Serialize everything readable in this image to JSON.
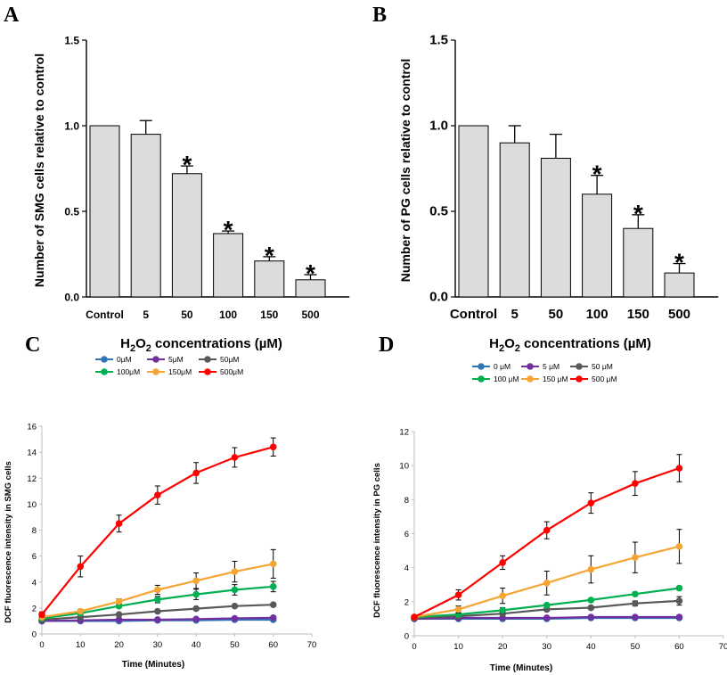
{
  "chart_data": [
    {
      "panel": "A",
      "type": "bar",
      "categories": [
        "Control",
        "5",
        "50",
        "100",
        "150",
        "500"
      ],
      "values": [
        1.0,
        0.95,
        0.72,
        0.37,
        0.21,
        0.1
      ],
      "errors": [
        0,
        0.08,
        0.045,
        0.015,
        0.025,
        0.03
      ],
      "significant": [
        false,
        false,
        true,
        true,
        true,
        true
      ],
      "star": "*",
      "ylabel": "Number of SMG cells relative to control",
      "xlabel_prefix": "H",
      "xlabel_sub1": "2",
      "xlabel_mid": "O",
      "xlabel_sub2": "2",
      "xlabel_suffix": " concentrations (µM)",
      "ylim": [
        0,
        1.5
      ],
      "yticks": [
        "0.0",
        "0.5",
        "1.0",
        "1.5"
      ]
    },
    {
      "panel": "B",
      "type": "bar",
      "categories": [
        "Control",
        "5",
        "50",
        "100",
        "150",
        "500"
      ],
      "values": [
        1.0,
        0.9,
        0.81,
        0.6,
        0.4,
        0.14
      ],
      "errors": [
        0,
        0.1,
        0.14,
        0.11,
        0.08,
        0.055
      ],
      "significant": [
        false,
        false,
        false,
        true,
        true,
        true
      ],
      "star": "*",
      "ylabel": "Number of PG cells relative to control",
      "xlabel_prefix": "H",
      "xlabel_sub1": "2",
      "xlabel_mid": "O",
      "xlabel_sub2": "2",
      "xlabel_suffix": " concentrations (µM)",
      "ylim": [
        0,
        1.5
      ],
      "yticks": [
        "0.0",
        "0.5",
        "1.0",
        "1.5"
      ]
    },
    {
      "panel": "C",
      "type": "line",
      "x": [
        0,
        10,
        20,
        30,
        40,
        50,
        60
      ],
      "series": [
        {
          "name": "0μM",
          "color": "#2e75b6",
          "values": [
            1.0,
            1.0,
            1.0,
            1.05,
            1.05,
            1.1,
            1.1
          ],
          "errors": [
            0.05,
            0.05,
            0.05,
            0.05,
            0.05,
            0.05,
            0.05
          ]
        },
        {
          "name": "5μM",
          "color": "#7030a0",
          "values": [
            1.0,
            1.05,
            1.1,
            1.1,
            1.15,
            1.2,
            1.25
          ],
          "errors": [
            0.05,
            0.05,
            0.05,
            0.05,
            0.05,
            0.05,
            0.1
          ]
        },
        {
          "name": "50μM",
          "color": "#595959",
          "values": [
            1.1,
            1.3,
            1.5,
            1.75,
            1.95,
            2.15,
            2.25
          ],
          "errors": [
            0.05,
            0.05,
            0.05,
            0.05,
            0.05,
            0.05,
            0.05
          ]
        },
        {
          "name": "100μM",
          "color": "#00b050",
          "values": [
            1.2,
            1.6,
            2.15,
            2.65,
            3.05,
            3.4,
            3.65
          ],
          "errors": [
            0.05,
            0.1,
            0.15,
            0.25,
            0.4,
            0.4,
            0.4
          ]
        },
        {
          "name": "150μM",
          "color": "#f4a534",
          "values": [
            1.3,
            1.75,
            2.5,
            3.4,
            4.1,
            4.8,
            5.4
          ],
          "errors": [
            0.1,
            0.15,
            0.2,
            0.35,
            0.6,
            0.8,
            1.1
          ]
        },
        {
          "name": "500μM",
          "color": "#ff0000",
          "values": [
            1.5,
            5.2,
            8.5,
            10.7,
            12.4,
            13.6,
            14.4
          ],
          "errors": [
            0.2,
            0.8,
            0.65,
            0.7,
            0.8,
            0.75,
            0.7
          ]
        }
      ],
      "xlabel": "Time (Minutes)",
      "ylabel": "DCF fluorescence intensity in SMG cells",
      "xlim": [
        0,
        70
      ],
      "ylim": [
        0,
        16
      ],
      "xticks": [
        "0",
        "10",
        "20",
        "30",
        "40",
        "50",
        "60",
        "70"
      ],
      "yticks": [
        "0",
        "2",
        "4",
        "6",
        "8",
        "10",
        "12",
        "14",
        "16"
      ]
    },
    {
      "panel": "D",
      "type": "line",
      "x": [
        0,
        10,
        20,
        30,
        40,
        50,
        60
      ],
      "series": [
        {
          "name": "0 μM",
          "color": "#2e75b6",
          "values": [
            1.0,
            1.0,
            1.0,
            1.0,
            1.05,
            1.05,
            1.05
          ],
          "errors": [
            0.05,
            0.05,
            0.05,
            0.05,
            0.05,
            0.05,
            0.05
          ]
        },
        {
          "name": "5 μM",
          "color": "#7030a0",
          "values": [
            1.0,
            1.05,
            1.05,
            1.05,
            1.1,
            1.1,
            1.1
          ],
          "errors": [
            0.05,
            0.05,
            0.05,
            0.05,
            0.05,
            0.05,
            0.1
          ]
        },
        {
          "name": "50 μM",
          "color": "#595959",
          "values": [
            1.05,
            1.15,
            1.3,
            1.55,
            1.65,
            1.9,
            2.05
          ],
          "errors": [
            0.05,
            0.05,
            0.1,
            0.1,
            0.1,
            0.15,
            0.25
          ]
        },
        {
          "name": "100 μM",
          "color": "#00b050",
          "values": [
            1.1,
            1.25,
            1.5,
            1.8,
            2.1,
            2.45,
            2.8
          ],
          "errors": [
            0.05,
            0.1,
            0.15,
            0.1,
            0.1,
            0.1,
            0.1
          ]
        },
        {
          "name": "150 μM",
          "color": "#f4a534",
          "values": [
            1.1,
            1.55,
            2.35,
            3.1,
            3.9,
            4.6,
            5.25
          ],
          "errors": [
            0.05,
            0.2,
            0.45,
            0.7,
            0.8,
            0.9,
            1.0
          ]
        },
        {
          "name": "500 μM",
          "color": "#ff0000",
          "values": [
            1.1,
            2.4,
            4.3,
            6.2,
            7.8,
            8.95,
            9.85
          ],
          "errors": [
            0.1,
            0.3,
            0.4,
            0.5,
            0.6,
            0.7,
            0.8
          ]
        }
      ],
      "xlabel": "Time (Minutes)",
      "ylabel": "DCF fluorescence intensity in PG cells",
      "xlim": [
        0,
        70
      ],
      "ylim": [
        0,
        12
      ],
      "xticks": [
        "0",
        "10",
        "20",
        "30",
        "40",
        "50",
        "60",
        "70"
      ],
      "yticks": [
        "0",
        "2",
        "4",
        "6",
        "8",
        "10",
        "12"
      ]
    }
  ]
}
